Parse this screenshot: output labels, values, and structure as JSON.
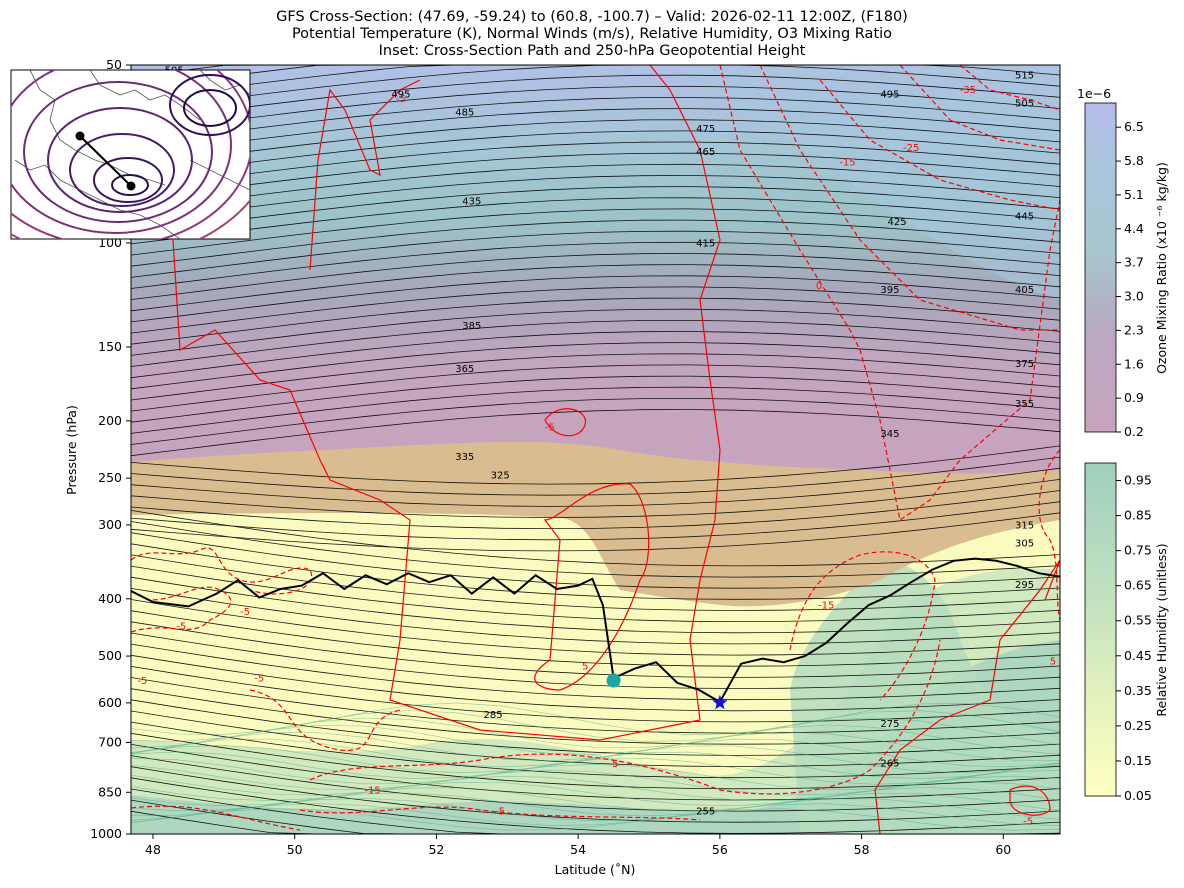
{
  "title": {
    "line1": "GFS Cross-Section: (47.69, -59.24) to (60.8, -100.7) – Valid: 2026-02-11 12:00Z, (F180)",
    "line2": "Potential Temperature (K), Normal Winds (m/s), Relative Humidity, O3 Mixing Ratio",
    "line3": "Inset: Cross-Section Path and 250-hPa Geopotential Height"
  },
  "colors": {
    "theta": "#000000",
    "wind": "#ff0000",
    "tropopause": "#000000",
    "rh_low": "#ffffc0",
    "rh_high": "#9fd0bd",
    "ozone_low": "#c8a4bd",
    "ozone_high": "#b6bcec",
    "tan_band": "#d9bd91",
    "marker_circle": "#1aa6a6",
    "marker_star": "#1010e0"
  },
  "chart_data": {
    "type": "cross-section",
    "xlabel": "Latitude (˚N)",
    "ylabel": "Pressure (hPa)",
    "xlim": [
      47.69,
      60.8
    ],
    "ylim": [
      1000,
      50
    ],
    "y_scale": "log",
    "x_ticks": [
      48,
      50,
      52,
      54,
      56,
      58,
      60
    ],
    "y_ticks": [
      1000,
      850,
      700,
      600,
      500,
      400,
      300,
      250,
      200,
      150,
      100,
      50
    ],
    "theta_labels": [
      {
        "value": "495",
        "lat": 51.5,
        "p": 56
      },
      {
        "value": "485",
        "lat": 52.4,
        "p": 60
      },
      {
        "value": "475",
        "lat": 55.8,
        "p": 64
      },
      {
        "value": "465",
        "lat": 55.8,
        "p": 70
      },
      {
        "value": "435",
        "lat": 52.5,
        "p": 85
      },
      {
        "value": "415",
        "lat": 55.8,
        "p": 100
      },
      {
        "value": "385",
        "lat": 52.5,
        "p": 138
      },
      {
        "value": "365",
        "lat": 52.4,
        "p": 163
      },
      {
        "value": "335",
        "lat": 52.4,
        "p": 230
      },
      {
        "value": "325",
        "lat": 52.9,
        "p": 247
      },
      {
        "value": "255",
        "lat": 55.8,
        "p": 915
      },
      {
        "value": "265",
        "lat": 58.4,
        "p": 758
      },
      {
        "value": "275",
        "lat": 58.4,
        "p": 650
      },
      {
        "value": "285",
        "lat": 52.8,
        "p": 628
      },
      {
        "value": "295",
        "lat": 60.3,
        "p": 378
      },
      {
        "value": "305",
        "lat": 60.3,
        "p": 322
      },
      {
        "value": "315",
        "lat": 60.3,
        "p": 300
      },
      {
        "value": "345",
        "lat": 58.4,
        "p": 210
      },
      {
        "value": "355",
        "lat": 60.3,
        "p": 187
      },
      {
        "value": "375",
        "lat": 60.3,
        "p": 160
      },
      {
        "value": "395",
        "lat": 58.4,
        "p": 120
      },
      {
        "value": "405",
        "lat": 60.3,
        "p": 120
      },
      {
        "value": "425",
        "lat": 58.5,
        "p": 92
      },
      {
        "value": "445",
        "lat": 60.3,
        "p": 90
      },
      {
        "value": "495",
        "lat": 58.4,
        "p": 56
      },
      {
        "value": "505",
        "lat": 60.3,
        "p": 58
      },
      {
        "value": "515",
        "lat": 60.3,
        "p": 52
      },
      {
        "value": "505",
        "lat": 48.3,
        "p": 51
      },
      {
        "value": "515",
        "lat": 48.8,
        "p": 54
      }
    ],
    "wind_labels": [
      {
        "value": "-5",
        "lat": 51.5,
        "p": 57
      },
      {
        "value": "-5",
        "lat": 53.6,
        "p": 205
      },
      {
        "value": "0",
        "lat": 57.4,
        "p": 118
      },
      {
        "value": "-15",
        "lat": 57.8,
        "p": 73
      },
      {
        "value": "-25",
        "lat": 58.7,
        "p": 69
      },
      {
        "value": "-35",
        "lat": 59.5,
        "p": 55
      },
      {
        "value": "5",
        "lat": 54.1,
        "p": 520
      },
      {
        "value": "-5",
        "lat": 49.3,
        "p": 420
      },
      {
        "value": "-5",
        "lat": 48.4,
        "p": 445
      },
      {
        "value": "-5",
        "lat": 47.85,
        "p": 550
      },
      {
        "value": "-5",
        "lat": 49.5,
        "p": 545
      },
      {
        "value": "-5",
        "lat": 54.5,
        "p": 760
      },
      {
        "value": "-15",
        "lat": 51.1,
        "p": 842
      },
      {
        "value": "-5",
        "lat": 52.9,
        "p": 915
      },
      {
        "value": "-15",
        "lat": 57.5,
        "p": 410
      },
      {
        "value": "-5",
        "lat": 60.35,
        "p": 950
      },
      {
        "value": "5",
        "lat": 60.7,
        "p": 510
      }
    ],
    "tropopause": {
      "lat": [
        47.69,
        48.0,
        48.5,
        48.9,
        49.2,
        49.5,
        49.8,
        50.1,
        50.4,
        50.7,
        51.0,
        51.3,
        51.6,
        51.9,
        52.2,
        52.5,
        52.8,
        53.1,
        53.4,
        53.7,
        54.0,
        54.2,
        54.35,
        54.5,
        54.8,
        55.1,
        55.4,
        55.7,
        56.0,
        56.3,
        56.6,
        56.9,
        57.2,
        57.5,
        57.8,
        58.1,
        58.4,
        58.7,
        59.0,
        59.3,
        59.6,
        59.9,
        60.2,
        60.5,
        60.8
      ],
      "p": [
        388,
        405,
        412,
        392,
        372,
        398,
        385,
        380,
        362,
        385,
        365,
        378,
        362,
        375,
        365,
        392,
        368,
        392,
        365,
        385,
        380,
        370,
        410,
        545,
        525,
        512,
        555,
        570,
        598,
        515,
        505,
        512,
        500,
        475,
        440,
        410,
        395,
        375,
        357,
        345,
        342,
        345,
        352,
        362,
        367
      ]
    },
    "markers": [
      {
        "shape": "circle",
        "lat": 54.5,
        "p": 550
      },
      {
        "shape": "star",
        "lat": 56.0,
        "p": 600
      }
    ],
    "ozone_colorbar": {
      "label": "Ozone Mixing Ratio (x10 ⁻⁶ kg/kg)",
      "offset": "1e−6",
      "range": [
        0.2,
        7.0
      ],
      "ticks": [
        "0.2",
        "0.9",
        "1.6",
        "2.3",
        "3.0",
        "3.7",
        "4.4",
        "5.1",
        "5.8",
        "6.5"
      ]
    },
    "rh_colorbar": {
      "label": "Relative Humidity (unitless)",
      "range": [
        0.05,
        1.0
      ],
      "ticks": [
        "0.05",
        "0.15",
        "0.25",
        "0.35",
        "0.45",
        "0.55",
        "0.65",
        "0.75",
        "0.85",
        "0.95"
      ]
    },
    "inset": {
      "title": "Inset: Cross-Section Path and 250-hPa Geopotential Height",
      "path_start": [
        47.69,
        -59.24
      ],
      "path_end": [
        60.8,
        -100.7
      ]
    }
  }
}
